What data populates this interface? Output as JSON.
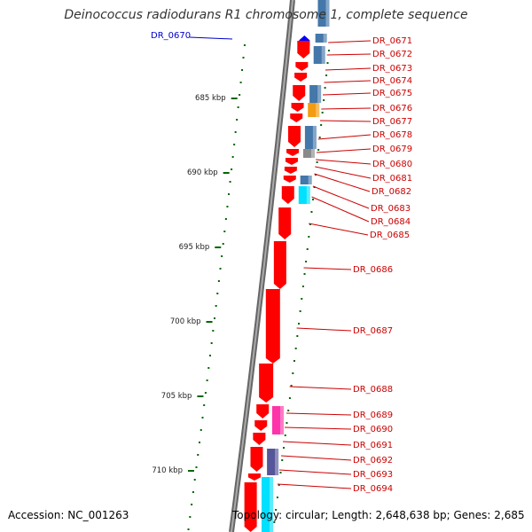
{
  "header": {
    "title": "Deinococcus radiodurans R1 chromosome 1, complete sequence"
  },
  "footer": {
    "accession": "Accession: NC_001263",
    "summary": "Topology: circular; Length: 2,648,638 bp; Genes: 2,685"
  },
  "scale_labels": [
    "685 kbp",
    "690 kbp",
    "695 kbp",
    "700 kbp",
    "705 kbp",
    "710 kbp"
  ],
  "genes": {
    "left": [
      {
        "name": "DR_0670",
        "color": "#0000cc"
      }
    ],
    "right": [
      "DR_0671",
      "DR_0672",
      "DR_0673",
      "DR_0674",
      "DR_0675",
      "DR_0676",
      "DR_0677",
      "DR_0678",
      "DR_0679",
      "DR_0680",
      "DR_0681",
      "DR_0682",
      "DR_0683",
      "DR_0684",
      "DR_0685",
      "DR_0686",
      "DR_0687",
      "DR_0688",
      "DR_0689",
      "DR_0690",
      "DR_0691",
      "DR_0692",
      "DR_0693",
      "DR_0694"
    ],
    "right_color": "#cc0000"
  },
  "colors": {
    "gene_forward": "#ff0000",
    "gene_reverse": "#0000ff",
    "tick": "#006600",
    "backbone": "#888888",
    "feature_blue": "#4477aa",
    "feature_orange": "#f39c12",
    "feature_gray": "#8a8a8a",
    "feature_cyan": "#00e0ff",
    "feature_magenta": "#ff33aa",
    "feature_purple": "#555599"
  }
}
